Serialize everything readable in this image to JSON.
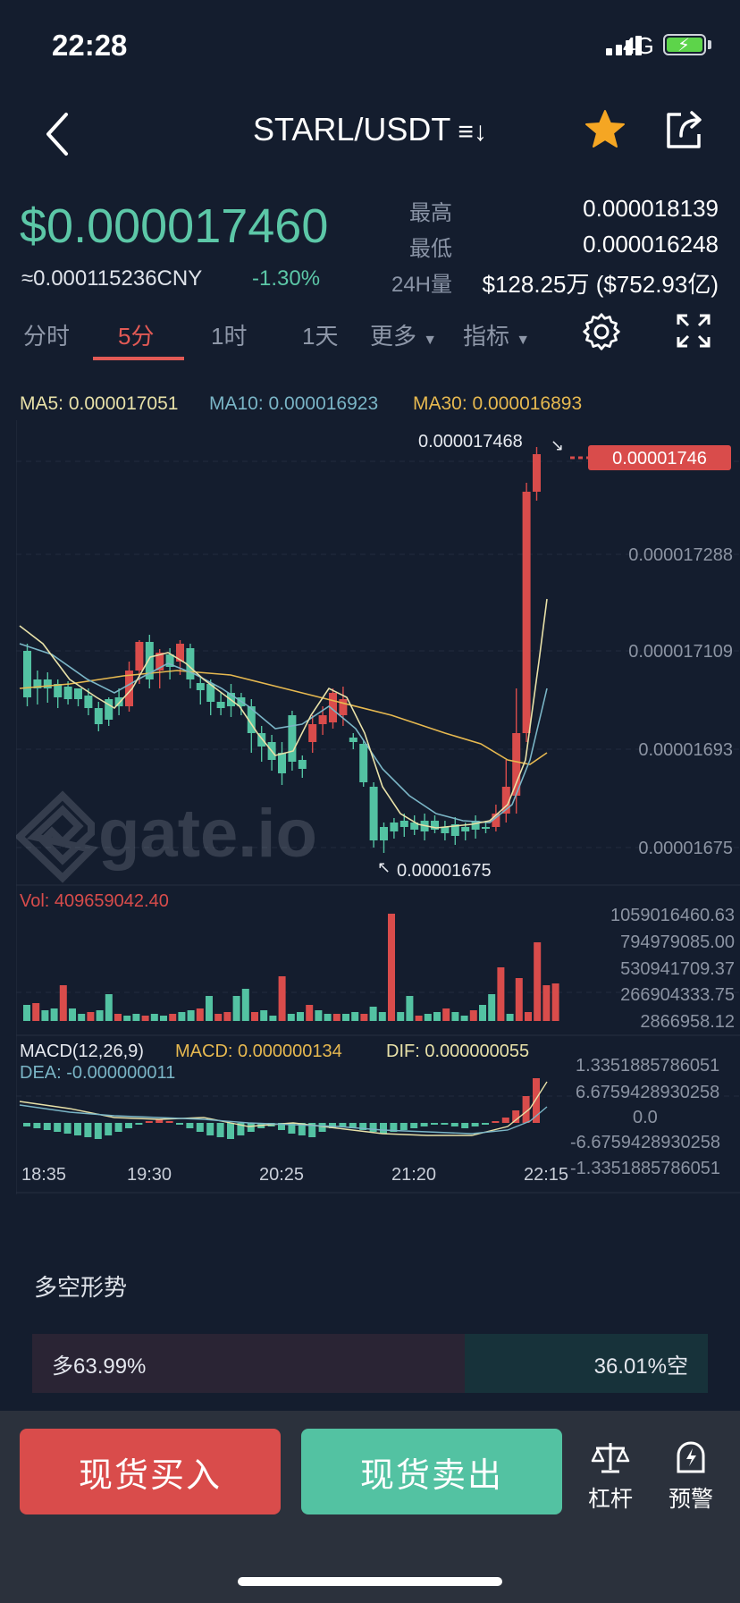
{
  "status_bar": {
    "time": "22:28",
    "network": "4G"
  },
  "header": {
    "pair": "STARL/USDT",
    "switch_icon": "≡↓"
  },
  "ticker": {
    "price": "$0.000017460",
    "cny": "≈0.000115236CNY",
    "change": "-1.30%",
    "high_label": "最高",
    "high": "0.000018139",
    "low_label": "最低",
    "low": "0.000016248",
    "vol_label": "24H量",
    "vol": "$128.25万 ($752.93亿)"
  },
  "tabs": [
    "分时",
    "5分",
    "1时",
    "1天",
    "更多",
    "指标"
  ],
  "active_tab": "5分",
  "ma": {
    "ma5": "MA5: 0.000017051",
    "ma10": "MA10: 0.000016923",
    "ma30": "MA30: 0.000016893"
  },
  "price_axis": [
    "0.000017288",
    "0.000017109",
    "0.00001693",
    "0.00001675"
  ],
  "last_price_tag": "0.00001746",
  "high_mark": "0.000017468",
  "low_mark": "0.00001675",
  "volume": {
    "label": "Vol: 409659042.40",
    "axis": [
      "1059016460.63",
      "794979085.00",
      "530941709.37",
      "266904333.75",
      "2866958.12"
    ]
  },
  "macd": {
    "params": "MACD(12,26,9)",
    "macd": "MACD: 0.000000134",
    "dif": "DIF: 0.000000055",
    "dea": "DEA: -0.000000011",
    "axis": [
      "1.3351885786051",
      "6.6759428930258",
      "0.0",
      "-6.6759428930258",
      "-1.3351885786051"
    ]
  },
  "time_axis": [
    "18:35",
    "19:30",
    "20:25",
    "21:20",
    "22:15"
  ],
  "sentiment": {
    "title": "多空形势",
    "long": "多63.99%",
    "short": "36.01%空",
    "long_pct": 63.99
  },
  "actions": {
    "buy": "现货买入",
    "sell": "现货卖出",
    "leverage": "杠杆",
    "alert": "预警"
  },
  "watermark": "gate.io",
  "colors": {
    "up": "#53c2a2",
    "down": "#d94c4b",
    "ma5": "#e8e1a8",
    "ma10": "#7ab5c6",
    "ma30": "#e7b950",
    "bg": "#141d2e"
  }
}
